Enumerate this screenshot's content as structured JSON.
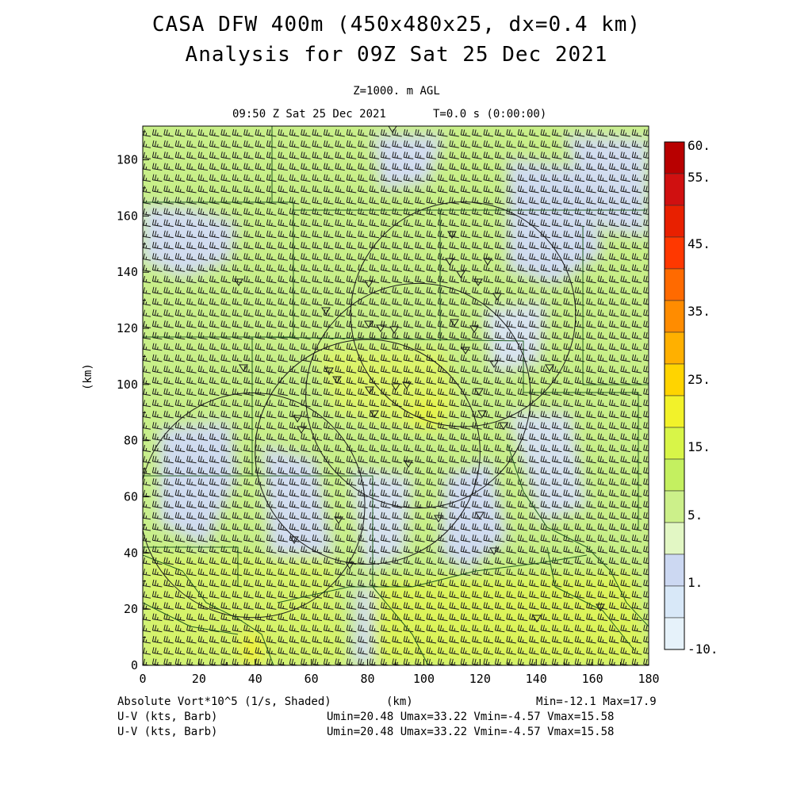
{
  "header": {
    "title_line1": "CASA DFW 400m (450x480x25, dx=0.4 km)",
    "title_line2": "Analysis for 09Z Sat 25 Dec 2021",
    "level": "Z=1000. m AGL",
    "valid_time": "09:50 Z Sat 25 Dec 2021",
    "time_offset": "T=0.0 s (0:00:00)"
  },
  "map": {
    "x_axis_label": "(km)",
    "y_axis_label": "(km)",
    "x_range": [
      0,
      180
    ],
    "y_range": [
      0,
      192
    ],
    "x_ticks": [
      "0",
      "20",
      "40",
      "60",
      "80",
      "100",
      "120",
      "140",
      "160",
      "180"
    ],
    "y_ticks": [
      "0",
      "20",
      "40",
      "60",
      "80",
      "100",
      "120",
      "140",
      "160",
      "180"
    ],
    "shading_field": "absolute vorticity",
    "barb_field": "U-V wind barbs",
    "radar_rings_km": [
      {
        "cx": 39,
        "cy": 57,
        "r": 40
      },
      {
        "cx": 80,
        "cy": 76,
        "r": 40
      },
      {
        "cx": 98,
        "cy": 96,
        "r": 40
      },
      {
        "cx": 114,
        "cy": 125,
        "r": 40
      }
    ]
  },
  "colorbar": {
    "labels": [
      "60.",
      "55.",
      "45.",
      "35.",
      "25.",
      "15.",
      "5.",
      "1.",
      "-10."
    ],
    "colors": [
      "#b80000",
      "#d01010",
      "#e82000",
      "#ff3800",
      "#ff6a00",
      "#ff8c00",
      "#ffb000",
      "#ffd400",
      "#f2f22a",
      "#d8f548",
      "#c4f060",
      "#ccf08a",
      "#e2f7c4",
      "#ccd8f2",
      "#d8e8f8",
      "#e6f2fa"
    ]
  },
  "footer": {
    "line1_left": "Absolute Vort*10^5 (1/s, Shaded)",
    "line1_mid": "(km)",
    "line1_right": "Min=-12.1 Max=17.9",
    "line2_left": "U-V (kts, Barb)",
    "line2_right": "Umin=20.48 Umax=33.22 Vmin=-4.57 Vmax=15.58",
    "line3_left": "U-V (kts, Barb)",
    "line3_right": "Umin=20.48 Umax=33.22 Vmin=-4.57 Vmax=15.58"
  }
}
